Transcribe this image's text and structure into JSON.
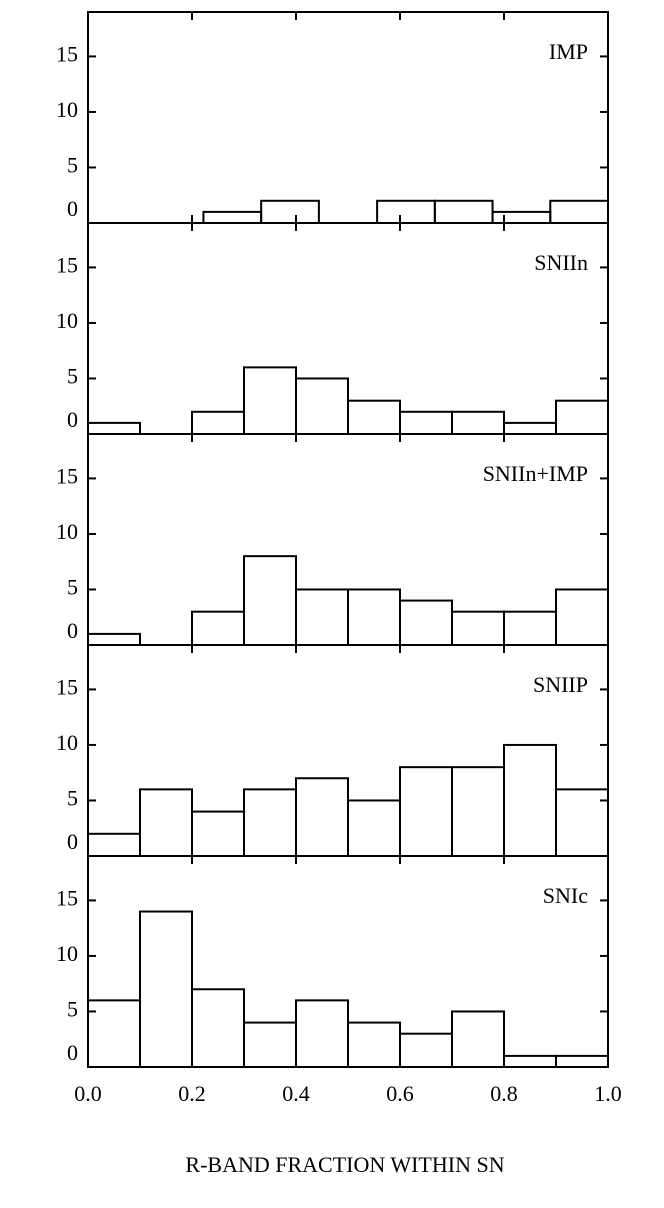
{
  "chart_data": [
    {
      "type": "histogram",
      "annotation": "IMP",
      "bins": [
        0,
        0.111,
        0.222,
        0.333,
        0.444,
        0.556,
        0.667,
        0.778,
        0.889,
        1.0
      ],
      "counts": [
        0,
        0,
        1,
        2,
        0,
        2,
        2,
        1,
        2
      ],
      "xlim": [
        0,
        1
      ],
      "xticks": [
        0,
        0.2,
        0.4,
        0.6,
        0.8,
        1
      ],
      "ylim": [
        0,
        19
      ],
      "yticks": [
        0,
        5,
        10,
        15
      ]
    },
    {
      "type": "histogram",
      "annotation": "SNIIn",
      "bins": [
        0,
        0.1,
        0.2,
        0.3,
        0.4,
        0.5,
        0.6,
        0.7,
        0.8,
        0.9,
        1.0
      ],
      "counts": [
        1,
        0,
        2,
        6,
        5,
        3,
        2,
        2,
        1,
        3
      ],
      "xlim": [
        0,
        1
      ],
      "xticks": [
        0,
        0.2,
        0.4,
        0.6,
        0.8,
        1
      ],
      "ylim": [
        0,
        19
      ],
      "yticks": [
        0,
        5,
        10,
        15
      ]
    },
    {
      "type": "histogram",
      "annotation": "SNIIn+IMP",
      "bins": [
        0,
        0.1,
        0.2,
        0.3,
        0.4,
        0.5,
        0.6,
        0.7,
        0.8,
        0.9,
        1.0
      ],
      "counts": [
        1,
        0,
        3,
        8,
        5,
        5,
        4,
        3,
        3,
        5
      ],
      "xlim": [
        0,
        1
      ],
      "xticks": [
        0,
        0.2,
        0.4,
        0.6,
        0.8,
        1
      ],
      "ylim": [
        0,
        19
      ],
      "yticks": [
        0,
        5,
        10,
        15
      ]
    },
    {
      "type": "histogram",
      "annotation": "SNIIP",
      "bins": [
        0,
        0.1,
        0.2,
        0.3,
        0.4,
        0.5,
        0.6,
        0.7,
        0.8,
        0.9,
        1.0
      ],
      "counts": [
        2,
        6,
        4,
        6,
        7,
        5,
        8,
        8,
        10,
        6
      ],
      "xlim": [
        0,
        1
      ],
      "xticks": [
        0,
        0.2,
        0.4,
        0.6,
        0.8,
        1
      ],
      "ylim": [
        0,
        19
      ],
      "yticks": [
        0,
        5,
        10,
        15
      ]
    },
    {
      "type": "histogram",
      "annotation": "SNIc",
      "bins": [
        0,
        0.1,
        0.2,
        0.3,
        0.4,
        0.5,
        0.6,
        0.7,
        0.8,
        0.9,
        1.0
      ],
      "counts": [
        6,
        14,
        7,
        4,
        6,
        4,
        3,
        5,
        1,
        1
      ],
      "xlim": [
        0,
        1
      ],
      "xticks": [
        {
          "value": 0,
          "label": "0.0"
        },
        {
          "value": 0.2,
          "label": "0.2"
        },
        {
          "value": 0.4,
          "label": "0.4"
        },
        {
          "value": 0.6,
          "label": "0.6"
        },
        {
          "value": 0.8,
          "label": "0.8"
        },
        {
          "value": 1,
          "label": "1.0"
        }
      ],
      "ylim": [
        0,
        19
      ],
      "yticks": [
        0,
        5,
        10,
        15
      ],
      "xlabel": "R-BAND FRACTION WITHIN SN"
    }
  ]
}
